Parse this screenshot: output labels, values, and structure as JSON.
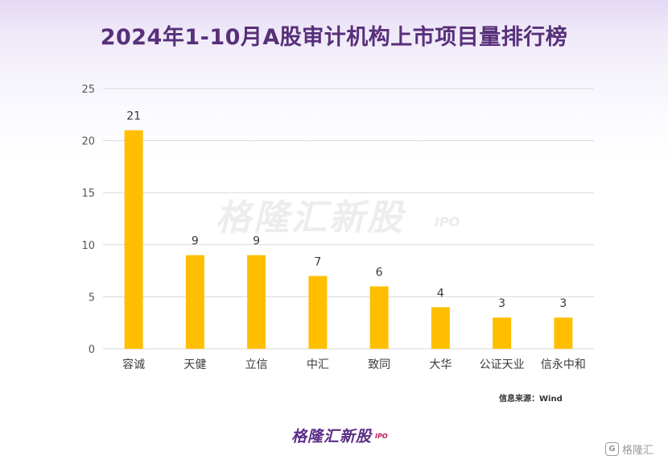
{
  "title": "2024年1-10月A股审计机构上市项目量排行榜",
  "watermark": {
    "text": "格隆汇新股",
    "sub": "IPO"
  },
  "source_text": "信息来源：Wind",
  "footer": {
    "logo_text": "格隆汇新股",
    "logo_sub": "IPO"
  },
  "corner_logo": {
    "icon_text": "G",
    "text": "格隆汇"
  },
  "colors": {
    "bar": "#ffbf00",
    "title": "#58307a",
    "grid": "#d9d9d9"
  },
  "chart_data": {
    "type": "bar",
    "title": "2024年1-10月A股审计机构上市项目量排行榜",
    "categories": [
      "容诚",
      "天健",
      "立信",
      "中汇",
      "致同",
      "大华",
      "公证天业",
      "信永中和"
    ],
    "values": [
      21,
      9,
      9,
      7,
      6,
      4,
      3,
      3
    ],
    "yticks": [
      0,
      5,
      10,
      15,
      20,
      25
    ],
    "ylim": [
      0,
      25
    ],
    "grid": true,
    "data_labels": true,
    "xlabel": "",
    "ylabel": ""
  }
}
